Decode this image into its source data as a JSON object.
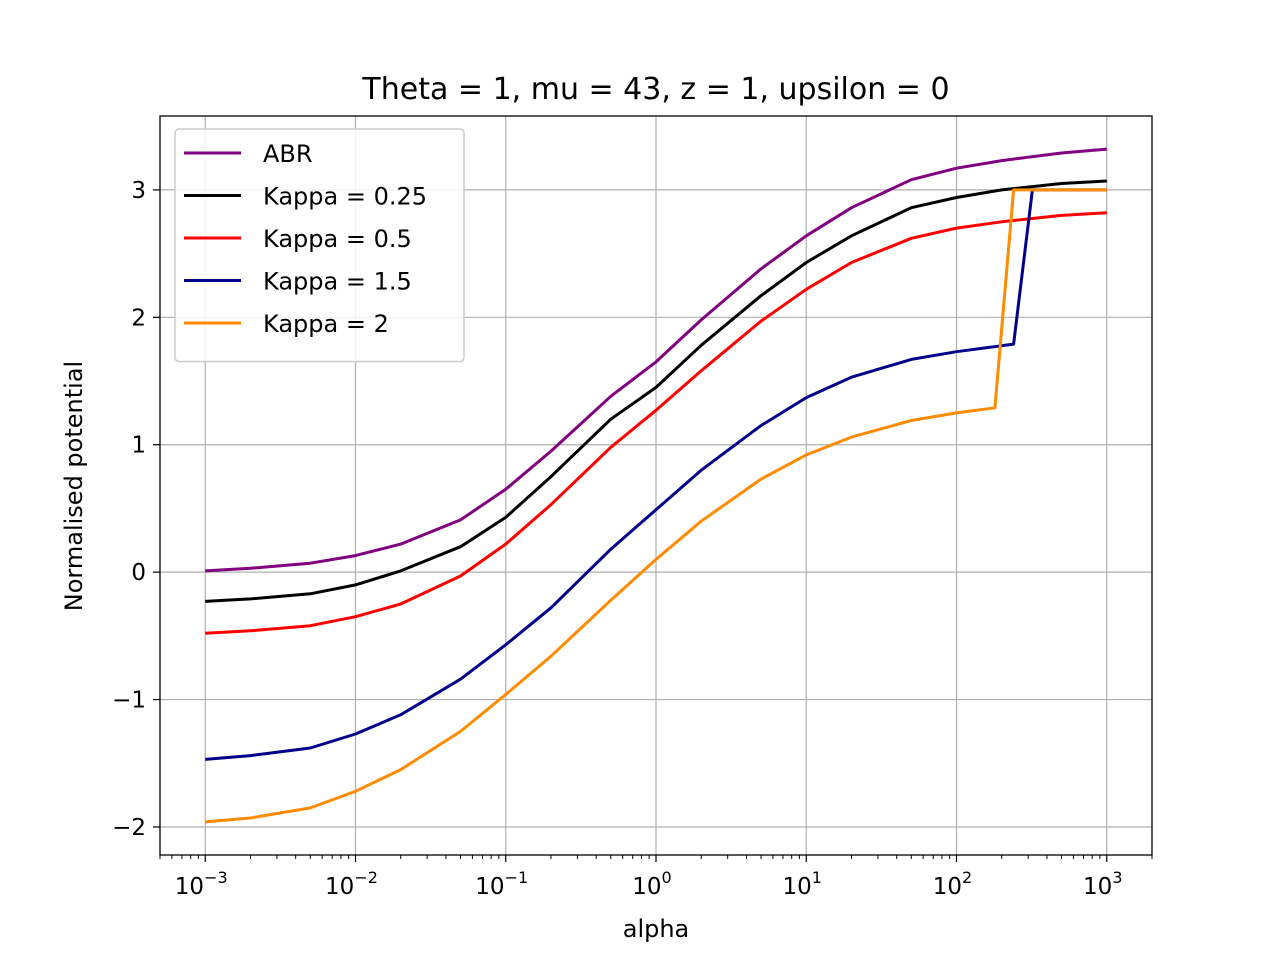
{
  "chart_data": {
    "type": "line",
    "title": "Theta = 1, mu = 43, z = 1, upsilon = 0",
    "xlabel": "alpha",
    "ylabel": "Normalised potential",
    "xscale": "log",
    "xlim": [
      0.0005,
      2000
    ],
    "ylim": [
      -2.22,
      3.58
    ],
    "grid": true,
    "legend_position": "top-left",
    "x_ticks": [
      {
        "value": 0.001,
        "base": "10",
        "exp": "−3"
      },
      {
        "value": 0.01,
        "base": "10",
        "exp": "−2"
      },
      {
        "value": 0.1,
        "base": "10",
        "exp": "−1"
      },
      {
        "value": 1,
        "base": "10",
        "exp": "0"
      },
      {
        "value": 10,
        "base": "10",
        "exp": "1"
      },
      {
        "value": 100,
        "base": "10",
        "exp": "2"
      },
      {
        "value": 1000,
        "base": "10",
        "exp": "3"
      }
    ],
    "y_ticks": [
      {
        "value": -2,
        "label": "−2"
      },
      {
        "value": -1,
        "label": "−1"
      },
      {
        "value": 0,
        "label": "0"
      },
      {
        "value": 1,
        "label": "1"
      },
      {
        "value": 2,
        "label": "2"
      },
      {
        "value": 3,
        "label": "3"
      }
    ],
    "series": [
      {
        "name": "ABR",
        "color": "#800080",
        "points": [
          [
            0.001,
            0.01
          ],
          [
            0.002,
            0.03
          ],
          [
            0.005,
            0.07
          ],
          [
            0.01,
            0.13
          ],
          [
            0.02,
            0.22
          ],
          [
            0.05,
            0.41
          ],
          [
            0.1,
            0.65
          ],
          [
            0.2,
            0.95
          ],
          [
            0.5,
            1.38
          ],
          [
            1,
            1.65
          ],
          [
            2,
            1.98
          ],
          [
            5,
            2.38
          ],
          [
            10,
            2.64
          ],
          [
            20,
            2.86
          ],
          [
            50,
            3.08
          ],
          [
            100,
            3.17
          ],
          [
            200,
            3.23
          ],
          [
            500,
            3.29
          ],
          [
            1000,
            3.32
          ]
        ]
      },
      {
        "name": "Kappa = 0.25",
        "color": "#000000",
        "points": [
          [
            0.001,
            -0.23
          ],
          [
            0.002,
            -0.21
          ],
          [
            0.005,
            -0.17
          ],
          [
            0.01,
            -0.1
          ],
          [
            0.02,
            0.01
          ],
          [
            0.05,
            0.2
          ],
          [
            0.1,
            0.43
          ],
          [
            0.2,
            0.75
          ],
          [
            0.5,
            1.2
          ],
          [
            1,
            1.45
          ],
          [
            2,
            1.78
          ],
          [
            5,
            2.17
          ],
          [
            10,
            2.43
          ],
          [
            20,
            2.64
          ],
          [
            50,
            2.86
          ],
          [
            100,
            2.94
          ],
          [
            200,
            3.0
          ],
          [
            500,
            3.05
          ],
          [
            1000,
            3.07
          ]
        ]
      },
      {
        "name": "Kappa = 0.5",
        "color": "#ff0000",
        "points": [
          [
            0.001,
            -0.48
          ],
          [
            0.002,
            -0.46
          ],
          [
            0.005,
            -0.42
          ],
          [
            0.01,
            -0.35
          ],
          [
            0.02,
            -0.25
          ],
          [
            0.05,
            -0.03
          ],
          [
            0.1,
            0.22
          ],
          [
            0.2,
            0.53
          ],
          [
            0.5,
            0.98
          ],
          [
            1,
            1.27
          ],
          [
            2,
            1.58
          ],
          [
            5,
            1.97
          ],
          [
            10,
            2.22
          ],
          [
            20,
            2.43
          ],
          [
            50,
            2.62
          ],
          [
            100,
            2.7
          ],
          [
            200,
            2.75
          ],
          [
            500,
            2.8
          ],
          [
            1000,
            2.82
          ]
        ]
      },
      {
        "name": "Kappa = 1.5",
        "color": "#00008b",
        "points": [
          [
            0.001,
            -1.47
          ],
          [
            0.002,
            -1.44
          ],
          [
            0.005,
            -1.38
          ],
          [
            0.01,
            -1.27
          ],
          [
            0.02,
            -1.12
          ],
          [
            0.05,
            -0.84
          ],
          [
            0.1,
            -0.57
          ],
          [
            0.2,
            -0.28
          ],
          [
            0.5,
            0.18
          ],
          [
            1,
            0.49
          ],
          [
            2,
            0.8
          ],
          [
            5,
            1.15
          ],
          [
            10,
            1.37
          ],
          [
            20,
            1.53
          ],
          [
            50,
            1.67
          ],
          [
            100,
            1.73
          ],
          [
            240,
            1.79
          ],
          [
            320,
            3.0
          ],
          [
            1000,
            3.0
          ]
        ]
      },
      {
        "name": "Kappa = 2",
        "color": "#ff8c00",
        "points": [
          [
            0.001,
            -1.96
          ],
          [
            0.002,
            -1.93
          ],
          [
            0.005,
            -1.85
          ],
          [
            0.01,
            -1.72
          ],
          [
            0.02,
            -1.55
          ],
          [
            0.05,
            -1.25
          ],
          [
            0.1,
            -0.96
          ],
          [
            0.2,
            -0.66
          ],
          [
            0.5,
            -0.22
          ],
          [
            1,
            0.1
          ],
          [
            2,
            0.4
          ],
          [
            5,
            0.73
          ],
          [
            10,
            0.92
          ],
          [
            20,
            1.06
          ],
          [
            50,
            1.19
          ],
          [
            100,
            1.25
          ],
          [
            180,
            1.29
          ],
          [
            240,
            3.0
          ],
          [
            1000,
            3.0
          ]
        ]
      }
    ]
  }
}
